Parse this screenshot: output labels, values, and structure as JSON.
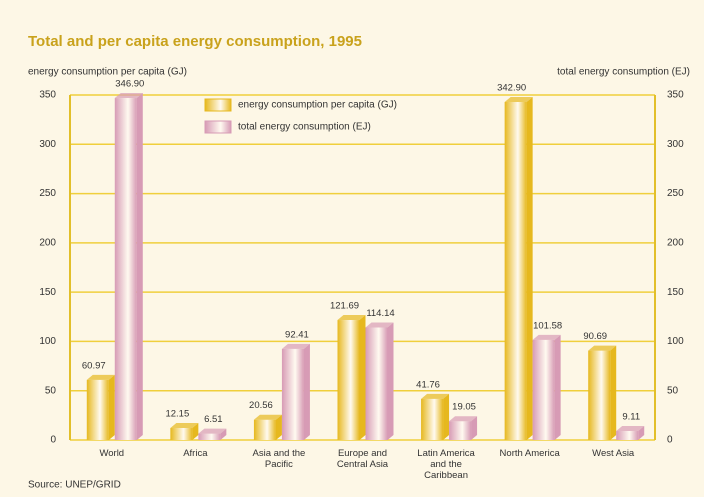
{
  "chart_data": {
    "type": "bar",
    "title": "Total and per capita energy consumption, 1995",
    "ylabel": "energy consumption per capita (GJ)",
    "y2label": "total energy consumption (EJ)",
    "source": "Source: UNEP/GRID",
    "categories": [
      "World",
      "Africa",
      "Asia and the Pacific",
      "Europe and Central Asia",
      "Latin America and the Caribbean",
      "North America",
      "West Asia"
    ],
    "series": [
      {
        "name": "energy consumption per capita (GJ)",
        "color": "#e6b81e",
        "axis": "y",
        "values": [
          60.97,
          12.15,
          20.56,
          121.69,
          41.76,
          342.9,
          90.69
        ],
        "value_labels": [
          "60.97",
          "12.15",
          "20.56",
          "121.69",
          "41.76",
          "342.90",
          "90.69"
        ]
      },
      {
        "name": "total energy consumption (EJ)",
        "color": "#d79bb5",
        "axis": "y2",
        "values": [
          346.9,
          6.51,
          92.41,
          114.14,
          19.05,
          101.58,
          9.11
        ],
        "value_labels": [
          "346.90",
          "6.51",
          "92.41",
          "114.14",
          "19.05",
          "101.58",
          "9.11"
        ]
      }
    ],
    "ylim": [
      0,
      350
    ],
    "yticks": [
      0,
      50,
      100,
      150,
      200,
      250,
      300,
      350
    ],
    "y2lim": [
      0,
      350
    ],
    "y2ticks": [
      0,
      50,
      100,
      150,
      200,
      250,
      300,
      350
    ],
    "grid": true,
    "legend": "top"
  }
}
